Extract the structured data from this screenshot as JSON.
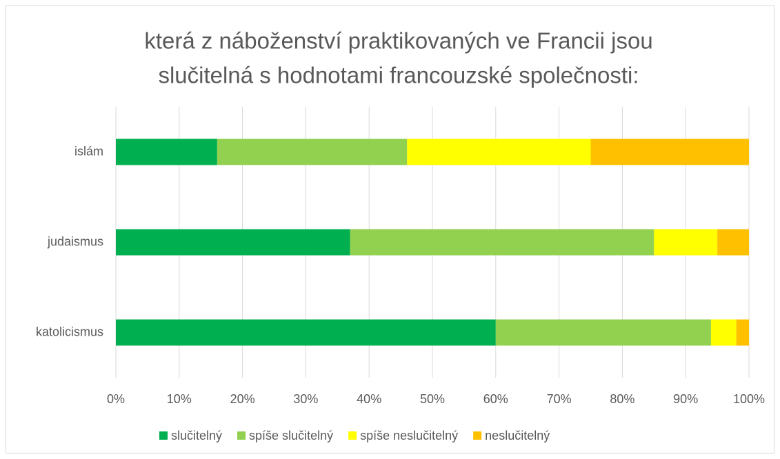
{
  "chart_data": {
    "type": "stacked-bar-horizontal",
    "title": [
      "která z náboženství praktikovaných ve Francii jsou",
      "slučitelná s hodnotami francouzské společnosti:"
    ],
    "categories": [
      "islám",
      "judaismus",
      "katolicismus"
    ],
    "series": [
      {
        "name": "slučitelný",
        "color": "#00b050",
        "values": [
          16,
          37,
          60
        ]
      },
      {
        "name": "spíše slučitelný",
        "color": "#92d050",
        "values": [
          30,
          48,
          34
        ]
      },
      {
        "name": "spíše neslučitelný",
        "color": "#ffff00",
        "values": [
          29,
          10,
          4
        ]
      },
      {
        "name": "neslučitelný",
        "color": "#ffc000",
        "values": [
          25,
          5,
          2
        ]
      }
    ],
    "xlim": [
      0,
      100
    ],
    "xticks": [
      {
        "value": 0,
        "label": "0%"
      },
      {
        "value": 10,
        "label": "10%"
      },
      {
        "value": 20,
        "label": "20%"
      },
      {
        "value": 30,
        "label": "30%"
      },
      {
        "value": 40,
        "label": "40%"
      },
      {
        "value": 50,
        "label": "50%"
      },
      {
        "value": 60,
        "label": "60%"
      },
      {
        "value": 70,
        "label": "70%"
      },
      {
        "value": 80,
        "label": "80%"
      },
      {
        "value": 90,
        "label": "90%"
      },
      {
        "value": 100,
        "label": "100%"
      }
    ],
    "grid": true,
    "legend": "bottom"
  }
}
